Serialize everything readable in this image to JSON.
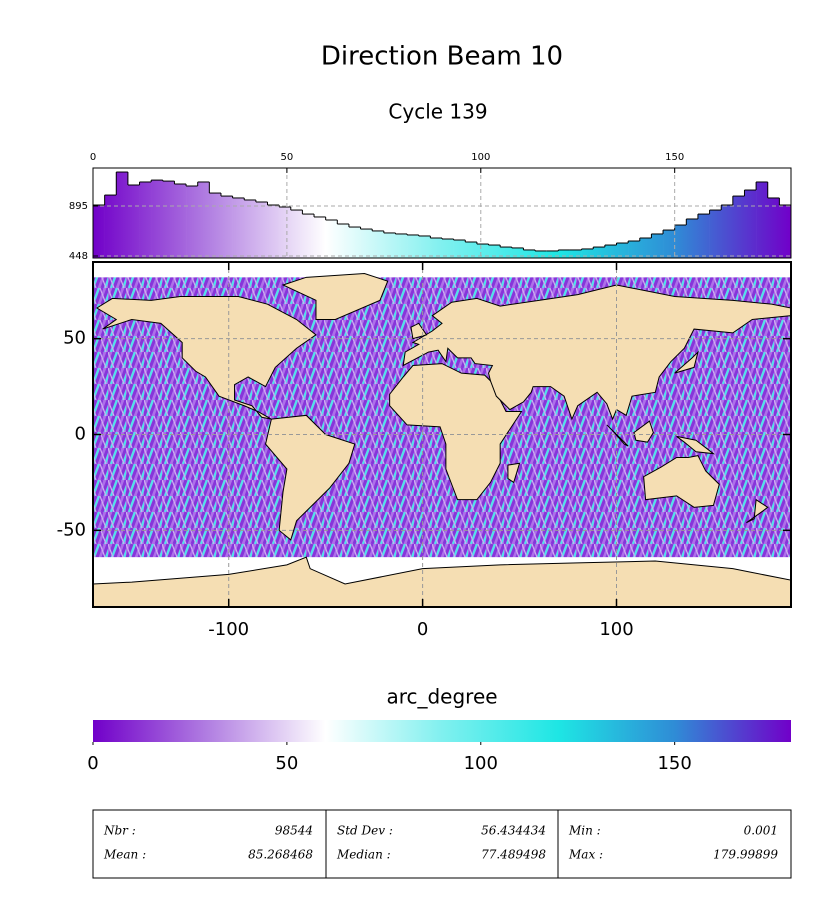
{
  "title": "Direction Beam 10",
  "subtitle": "Cycle 139",
  "chart_data": [
    {
      "type": "histogram",
      "bins": [
        0,
        3,
        6,
        9,
        12,
        15,
        18,
        21,
        24,
        27,
        30,
        33,
        36,
        39,
        42,
        45,
        48,
        51,
        54,
        57,
        60,
        63,
        66,
        69,
        72,
        75,
        78,
        81,
        84,
        87,
        90,
        93,
        96,
        99,
        102,
        105,
        108,
        111,
        114,
        117,
        120,
        123,
        126,
        129,
        132,
        135,
        138,
        141,
        144,
        147,
        150,
        153,
        156,
        159,
        162,
        165,
        168,
        171,
        174,
        177,
        180
      ],
      "values": [
        904,
        993,
        1199,
        1083,
        1110,
        1127,
        1118,
        1092,
        1074,
        1110,
        1011,
        984,
        967,
        949,
        931,
        904,
        886,
        859,
        823,
        797,
        770,
        734,
        707,
        689,
        672,
        654,
        645,
        636,
        627,
        609,
        600,
        591,
        573,
        555,
        546,
        528,
        520,
        502,
        493,
        493,
        502,
        502,
        511,
        528,
        546,
        564,
        582,
        609,
        645,
        680,
        725,
        779,
        823,
        859,
        904,
        984,
        1038,
        1110,
        967,
        904
      ],
      "xlim": [
        0,
        180
      ],
      "xticks": [
        0,
        50,
        100,
        150
      ],
      "ylim": [
        430,
        1235
      ],
      "yticks": [
        448,
        895
      ],
      "grid": true
    },
    {
      "type": "map",
      "xlim": [
        -170,
        190
      ],
      "ylim": [
        -90,
        90
      ],
      "xticks": [
        -100,
        0,
        100
      ],
      "yticks": [
        -50,
        0,
        50
      ],
      "grid": true
    },
    {
      "type": "colorbar",
      "title": "arc_degree",
      "xlim": [
        0,
        180
      ],
      "xticks": [
        0,
        50,
        100,
        150
      ],
      "colormap": [
        "#7100c9",
        "#b280e2",
        "#ffffff",
        "#80f0ef",
        "#1ee6e4",
        "#2f8cd6",
        "#7100c9"
      ]
    }
  ],
  "stats": {
    "rows": [
      [
        "Nbr :",
        "98544",
        "Std Dev :",
        "56.434434",
        "Min :",
        "0.001"
      ],
      [
        "Mean :",
        "85.268468",
        "Median :",
        "77.489498",
        "Max :",
        "179.99899"
      ]
    ]
  }
}
